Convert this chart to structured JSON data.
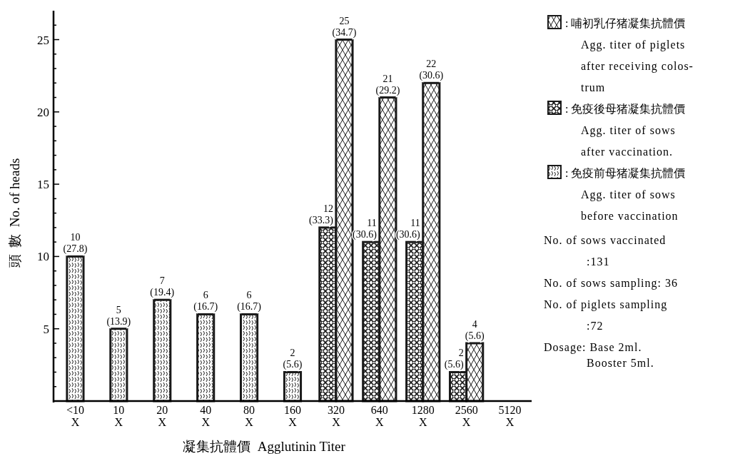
{
  "chart_data": {
    "type": "bar",
    "categories": [
      "<10\nX",
      "10\nX",
      "20\nX",
      "40\nX",
      "80\nX",
      "160\nX",
      "320\nX",
      "640\nX",
      "1280\nX",
      "2560\nX",
      "5120\nX"
    ],
    "series": [
      {
        "name": ": 免疫前母猪凝集抗體價\nAgg. titer of sows\nbefore vaccination",
        "color": "#1a1a1a",
        "values": [
          10,
          5,
          7,
          6,
          6,
          2,
          null,
          null,
          null,
          null,
          null
        ],
        "value_labels": [
          "10\n(27.8)",
          "5\n(13.9)",
          "7\n(19.4)",
          "6\n(16.7)",
          "6\n(16.7)",
          "2\n(5.6)",
          null,
          null,
          null,
          null,
          null
        ]
      },
      {
        "name": ": 免疫後母猪凝集抗體價\nAgg. titer of sows\nafter vaccination.",
        "color": "#1a1a1a",
        "values": [
          null,
          null,
          null,
          null,
          null,
          null,
          12,
          11,
          11,
          2,
          null
        ],
        "value_labels": [
          null,
          null,
          null,
          null,
          null,
          null,
          "12\n(33.3)",
          "11\n(30.6)",
          "11\n(30.6)",
          "2\n(5.6)",
          null
        ]
      },
      {
        "name": ": 哺初乳仔猪凝集抗體價\nAgg. titer of piglets\nafter receiving colos-\ntrum",
        "color": "#1a1a1a",
        "values": [
          null,
          null,
          null,
          null,
          null,
          null,
          25,
          21,
          22,
          4,
          null
        ],
        "value_labels": [
          null,
          null,
          null,
          null,
          null,
          null,
          "25\n(34.7)",
          "21\n(29.2)",
          "22\n(30.6)",
          "4\n(5.6)",
          null
        ]
      }
    ],
    "xlabel": "凝集抗體價  Agglutinin Titer",
    "ylabel": "頭  數  No. of heads",
    "ylim": [
      0,
      27
    ],
    "yticks": [
      {
        "value": 1,
        "label": null
      },
      {
        "value": 2,
        "label": null
      },
      {
        "value": 3,
        "label": null
      },
      {
        "value": 4,
        "label": null
      },
      5,
      {
        "value": 6,
        "label": null
      },
      {
        "value": 7,
        "label": null
      },
      {
        "value": 8,
        "label": null
      },
      {
        "value": 9,
        "label": null
      },
      10,
      {
        "value": 11,
        "label": null
      },
      {
        "value": 12,
        "label": null
      },
      {
        "value": 13,
        "label": null
      },
      {
        "value": 14,
        "label": null
      },
      15,
      {
        "value": 16,
        "label": null
      },
      {
        "value": 17,
        "label": null
      },
      {
        "value": 18,
        "label": null
      },
      {
        "value": 19,
        "label": null
      },
      20,
      {
        "value": 21,
        "label": null
      },
      {
        "value": 22,
        "label": null
      },
      {
        "value": 23,
        "label": null
      },
      {
        "value": 24,
        "label": null
      },
      25,
      {
        "value": 26,
        "label": null
      }
    ],
    "legend": "right",
    "grid": false,
    "annotations": [
      "No. of sows vaccinated\n:131",
      "No. of sows sampling: 36",
      "No. of piglets sampling\n:72",
      "Dosage: Base 2ml.\nBooster 5ml."
    ]
  }
}
